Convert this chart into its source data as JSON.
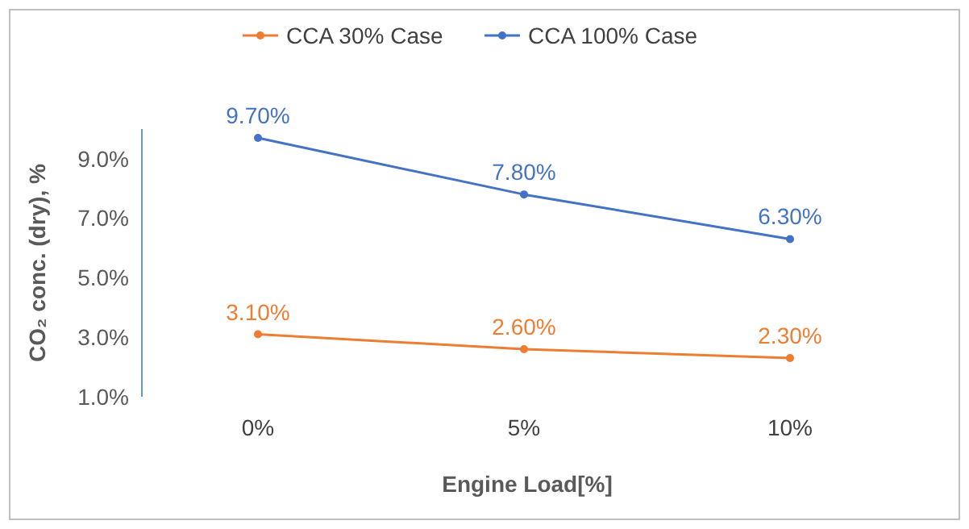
{
  "chart_data": {
    "type": "line",
    "xlabel": "Engine Load[%]",
    "ylabel": "CO₂ conc. (dry), %",
    "categories": [
      "0%",
      "5%",
      "10%"
    ],
    "series": [
      {
        "name": "CCA 30% Case",
        "color": "#ed7d31",
        "values": [
          3.1,
          2.6,
          2.3
        ],
        "value_labels": [
          "3.10%",
          "2.60%",
          "2.30%"
        ]
      },
      {
        "name": "CCA 100% Case",
        "color": "#4472c4",
        "values": [
          9.7,
          7.8,
          6.3
        ],
        "value_labels": [
          "9.70%",
          "7.80%",
          "6.30%"
        ]
      }
    ],
    "ylim": [
      1,
      10
    ],
    "yticks": [
      {
        "value": 1,
        "label": "1.0%"
      },
      {
        "value": 3,
        "label": "3.0%"
      },
      {
        "value": 5,
        "label": "5.0%"
      },
      {
        "value": 7,
        "label": "7.0%"
      },
      {
        "value": 9,
        "label": "9.0%"
      }
    ],
    "grid": false,
    "legend": "top",
    "marker": "circle",
    "line_style": "solid"
  }
}
